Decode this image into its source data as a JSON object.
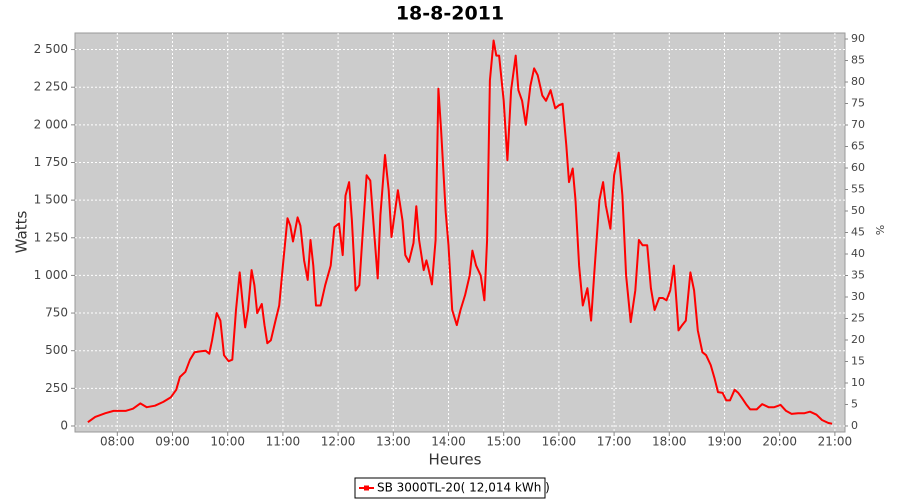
{
  "chart_data": {
    "type": "line",
    "title": "18-8-2011",
    "x_label": "Heures",
    "y_label": "Watts",
    "y2_label": "%",
    "x": [
      "07:28",
      "07:36",
      "07:47",
      "07:56",
      "08:09",
      "08:17",
      "08:25",
      "08:32",
      "08:41",
      "08:50",
      "08:58",
      "09:04",
      "09:08",
      "09:14",
      "09:19",
      "09:24",
      "09:30",
      "09:36",
      "09:40",
      "09:43",
      "09:48",
      "09:52",
      "09:56",
      "10:01",
      "10:05",
      "10:09",
      "10:13",
      "10:16",
      "10:19",
      "10:22",
      "10:26",
      "10:29",
      "10:32",
      "10:37",
      "10:40",
      "10:43",
      "10:47",
      "10:52",
      "10:56",
      "11:00",
      "11:05",
      "11:08",
      "11:11",
      "11:16",
      "11:19",
      "11:23",
      "11:27",
      "11:30",
      "11:33",
      "11:36",
      "11:41",
      "11:46",
      "11:52",
      "11:56",
      "12:01",
      "12:05",
      "12:08",
      "12:12",
      "12:15",
      "12:19",
      "12:23",
      "12:27",
      "12:31",
      "12:35",
      "12:39",
      "12:43",
      "12:46",
      "12:51",
      "12:55",
      "12:58",
      "13:02",
      "13:05",
      "13:10",
      "13:13",
      "13:17",
      "13:22",
      "13:25",
      "13:28",
      "13:33",
      "13:36",
      "13:38",
      "13:42",
      "13:46",
      "13:49",
      "13:52",
      "13:57",
      "14:00",
      "14:04",
      "14:09",
      "14:13",
      "14:18",
      "14:23",
      "14:26",
      "14:30",
      "14:35",
      "14:39",
      "14:42",
      "14:45",
      "14:49",
      "14:52",
      "14:55",
      "15:00",
      "15:04",
      "15:08",
      "15:13",
      "15:16",
      "15:20",
      "15:24",
      "15:29",
      "15:33",
      "15:37",
      "15:42",
      "15:46",
      "15:51",
      "15:56",
      "16:00",
      "16:04",
      "16:08",
      "16:11",
      "16:15",
      "16:18",
      "16:22",
      "16:26",
      "16:31",
      "16:35",
      "16:39",
      "16:44",
      "16:48",
      "16:51",
      "16:56",
      "17:00",
      "17:05",
      "17:09",
      "17:13",
      "17:18",
      "17:23",
      "17:27",
      "17:31",
      "17:36",
      "17:40",
      "17:44",
      "17:49",
      "17:53",
      "17:57",
      "18:01",
      "18:05",
      "18:10",
      "18:14",
      "18:18",
      "18:23",
      "18:27",
      "18:31",
      "18:36",
      "18:40",
      "18:45",
      "18:49",
      "18:53",
      "18:58",
      "19:02",
      "19:06",
      "19:11",
      "19:15",
      "19:19",
      "19:24",
      "19:28",
      "19:35",
      "19:41",
      "19:48",
      "19:54",
      "20:01",
      "20:07",
      "20:13",
      "20:20",
      "20:27",
      "20:33",
      "20:40",
      "20:46",
      "20:53",
      "20:57"
    ],
    "series": [
      {
        "name": "SB 3000TL-20( 12,014 kWh )",
        "color": "#ff0000",
        "values": [
          25,
          60,
          85,
          100,
          100,
          115,
          150,
          125,
          135,
          160,
          190,
          240,
          325,
          360,
          440,
          490,
          495,
          500,
          480,
          570,
          750,
          700,
          470,
          430,
          440,
          770,
          1020,
          835,
          655,
          770,
          1035,
          935,
          750,
          810,
          670,
          550,
          570,
          700,
          800,
          1065,
          1380,
          1330,
          1225,
          1385,
          1330,
          1100,
          970,
          1235,
          1065,
          800,
          800,
          935,
          1065,
          1320,
          1345,
          1135,
          1530,
          1620,
          1365,
          900,
          935,
          1300,
          1665,
          1630,
          1300,
          980,
          1400,
          1800,
          1565,
          1255,
          1430,
          1565,
          1365,
          1135,
          1090,
          1215,
          1460,
          1235,
          1035,
          1100,
          1050,
          940,
          1235,
          2240,
          1965,
          1420,
          1200,
          770,
          670,
          770,
          870,
          1000,
          1165,
          1065,
          1000,
          835,
          1235,
          2295,
          2560,
          2460,
          2460,
          2160,
          1765,
          2230,
          2460,
          2230,
          2160,
          2000,
          2260,
          2375,
          2330,
          2195,
          2160,
          2230,
          2110,
          2130,
          2140,
          1865,
          1620,
          1710,
          1500,
          1065,
          800,
          915,
          700,
          1065,
          1500,
          1620,
          1465,
          1310,
          1665,
          1815,
          1530,
          1000,
          690,
          900,
          1235,
          1200,
          1200,
          915,
          770,
          850,
          850,
          835,
          900,
          1065,
          635,
          670,
          700,
          1020,
          900,
          635,
          490,
          470,
          405,
          320,
          225,
          220,
          170,
          170,
          240,
          220,
          185,
          140,
          110,
          110,
          145,
          125,
          125,
          140,
          100,
          80,
          85,
          85,
          95,
          75,
          40,
          20,
          15
        ]
      }
    ],
    "xlim": [
      "07:14",
      "21:11"
    ],
    "xticks": [
      "08:00",
      "09:00",
      "10:00",
      "11:00",
      "12:00",
      "13:00",
      "14:00",
      "15:00",
      "16:00",
      "17:00",
      "18:00",
      "19:00",
      "20:00",
      "21:00"
    ],
    "ylim": [
      -40,
      2610
    ],
    "yticks": [
      0,
      250,
      500,
      750,
      {
        "value": 1000,
        "label": "1 000"
      },
      {
        "value": 1250,
        "label": "1 250"
      },
      {
        "value": 1500,
        "label": "1 500"
      },
      {
        "value": 1750,
        "label": "1 750"
      },
      {
        "value": 2000,
        "label": "2 000"
      },
      {
        "value": 2250,
        "label": "2 250"
      },
      {
        "value": 2500,
        "label": "2 500"
      }
    ],
    "y2lim": [
      -1.4,
      91.4
    ],
    "y2ticks": [
      0,
      5,
      10,
      15,
      20,
      25,
      30,
      35,
      40,
      45,
      50,
      55,
      60,
      65,
      70,
      75,
      80,
      85,
      90
    ],
    "grid": true,
    "legend": "bottom"
  }
}
